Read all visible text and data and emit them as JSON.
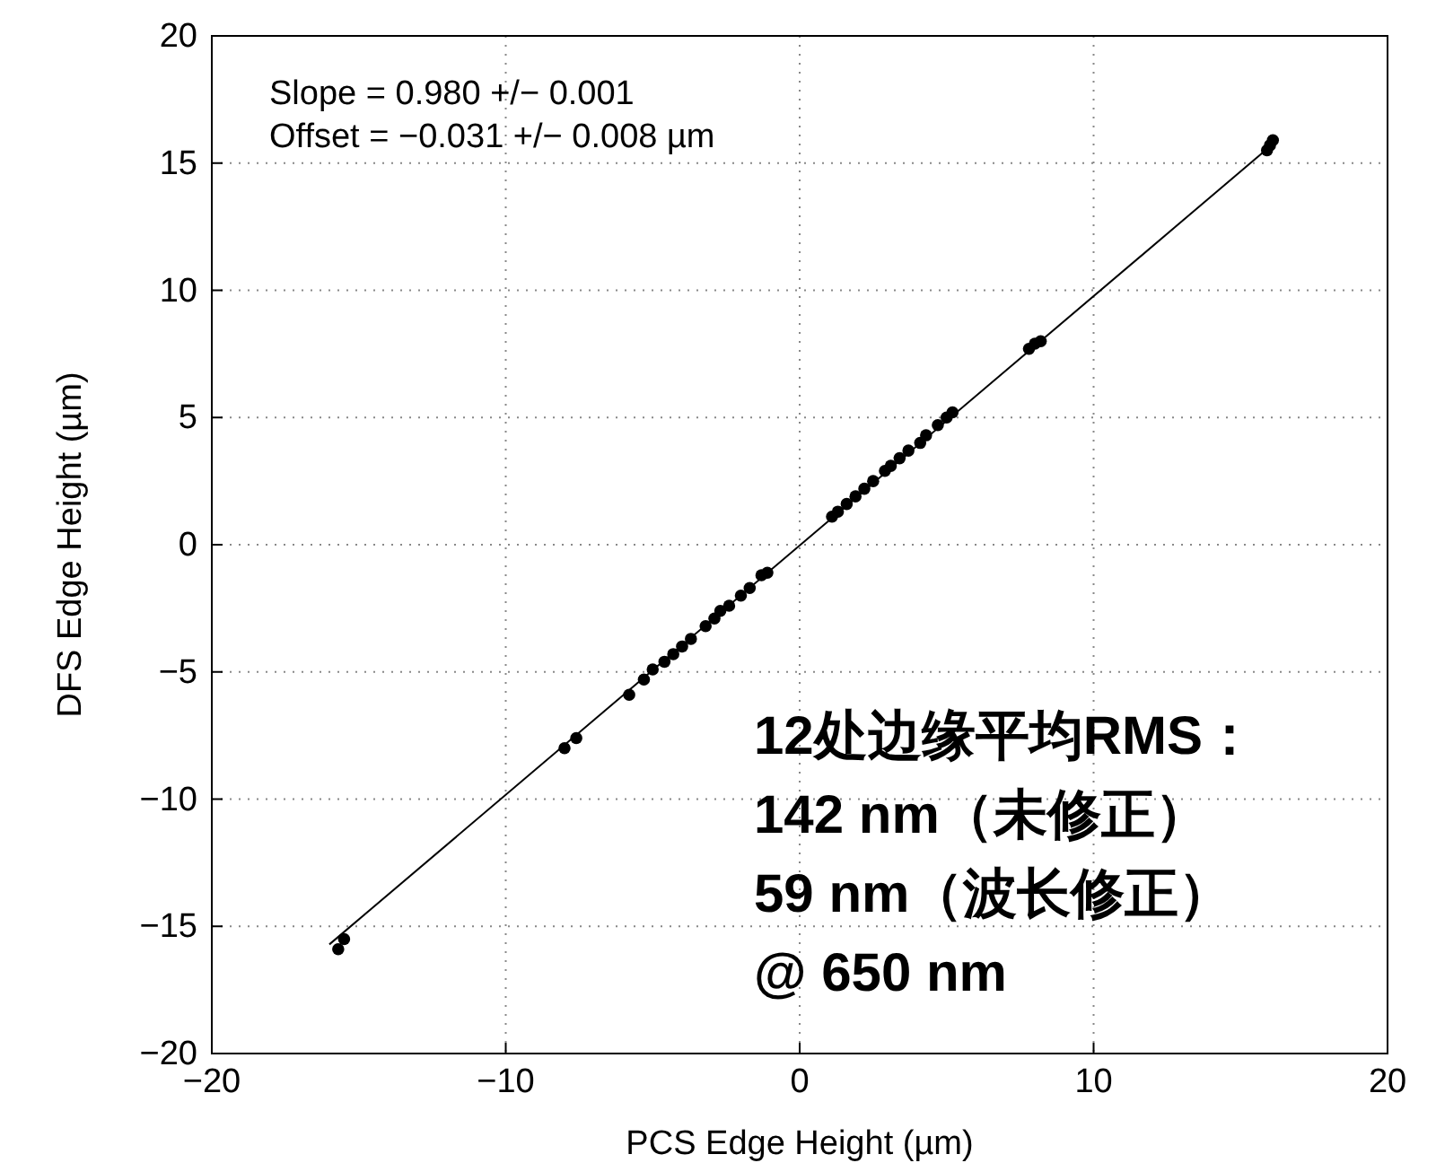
{
  "chart_data": {
    "type": "scatter",
    "xlabel": "PCS Edge Height (µm)",
    "ylabel": "DFS Edge Height (µm)",
    "xlim": [
      -20,
      20
    ],
    "xticks": [
      {
        "value": -20,
        "label": "−20"
      },
      {
        "value": -10,
        "label": "−10"
      },
      0,
      10,
      20
    ],
    "ylim": [
      -20,
      20
    ],
    "yticks": [
      {
        "value": -20,
        "label": "−20"
      },
      {
        "value": -15,
        "label": "−15"
      },
      {
        "value": -10,
        "label": "−10"
      },
      {
        "value": -5,
        "label": "−5"
      },
      0,
      5,
      10,
      15,
      20
    ],
    "grid": true,
    "marker": "circle",
    "series": [
      {
        "color": "#000000",
        "x": [
          -15.7,
          -15.5,
          -8.0,
          -7.6,
          -5.8,
          -5.3,
          -5.0,
          -4.6,
          -4.3,
          -4.0,
          -3.7,
          -3.2,
          -2.9,
          -2.7,
          -2.4,
          -2.0,
          -1.7,
          -1.3,
          -1.1,
          1.1,
          1.3,
          1.6,
          1.9,
          2.2,
          2.5,
          2.9,
          3.1,
          3.4,
          3.7,
          4.1,
          4.3,
          4.7,
          5.0,
          5.2,
          7.8,
          8.0,
          8.2,
          15.9,
          16.0,
          16.1
        ],
        "values": [
          -15.9,
          -15.5,
          -8.0,
          -7.6,
          -5.9,
          -5.3,
          -4.9,
          -4.6,
          -4.3,
          -4.0,
          -3.7,
          -3.2,
          -2.9,
          -2.6,
          -2.4,
          -2.0,
          -1.7,
          -1.2,
          -1.1,
          1.1,
          1.3,
          1.6,
          1.9,
          2.2,
          2.5,
          2.9,
          3.1,
          3.4,
          3.7,
          4.0,
          4.3,
          4.7,
          5.0,
          5.2,
          7.7,
          7.9,
          8.0,
          15.5,
          15.7,
          15.9
        ]
      },
      {
        "type": "line",
        "color": "#000000",
        "marker": "none",
        "line_style": "solid",
        "x": [
          -16,
          16
        ],
        "values": [
          -15.71,
          15.65
        ]
      }
    ],
    "annotations": [
      "Slope = 0.980 +/− 0.001",
      "Offset = −0.031 +/− 0.008 µm",
      "12处边缘平均RMS：",
      "142 nm（未修正）",
      "59 nm（波长修正）",
      "@ 650 nm"
    ]
  }
}
